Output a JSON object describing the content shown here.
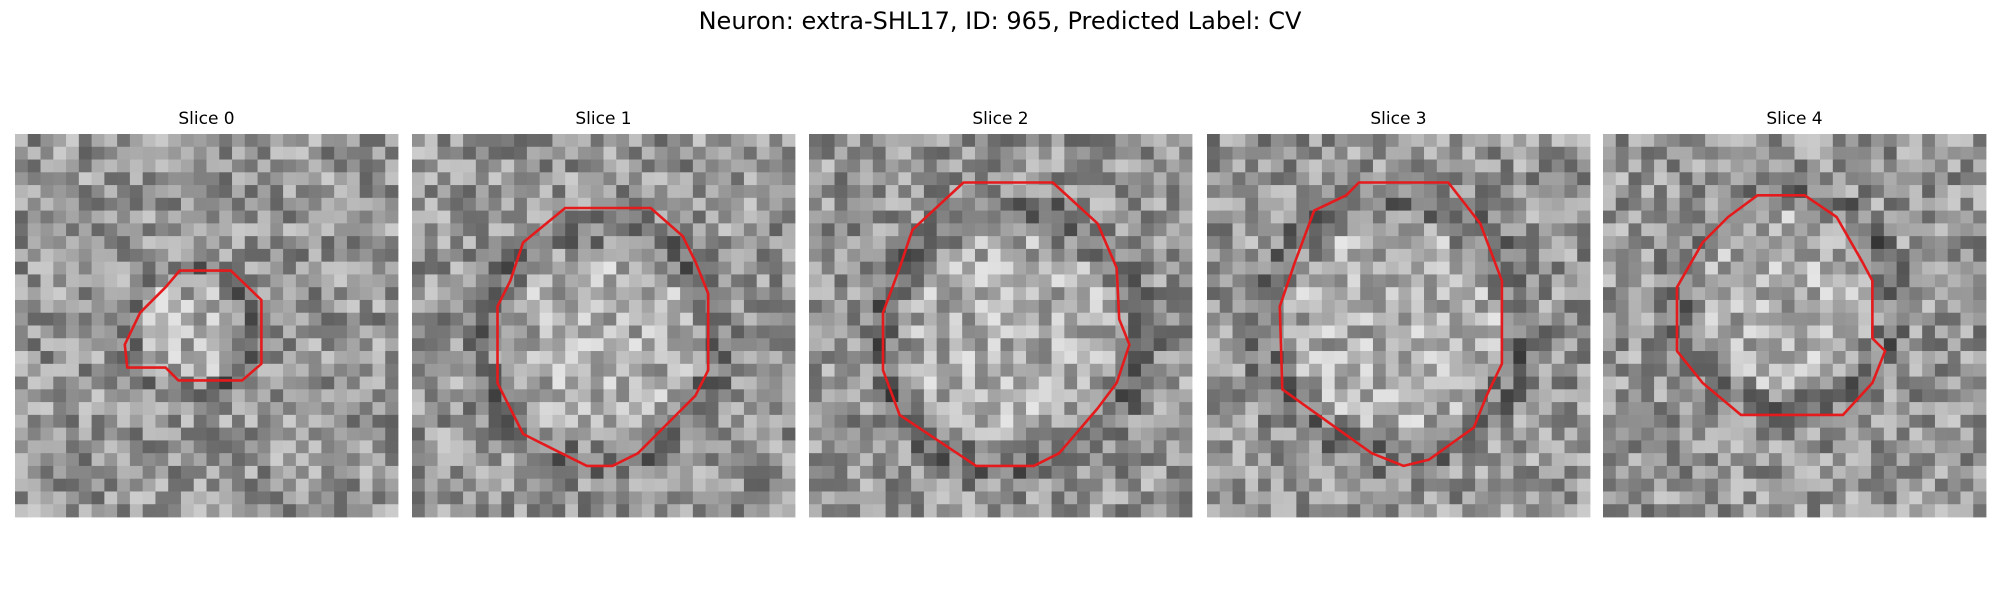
{
  "header": {
    "title": "Neuron: extra-SHL17, ID: 965, Predicted Label: CV"
  },
  "panels": [
    {
      "title": "Slice 0"
    },
    {
      "title": "Slice 1"
    },
    {
      "title": "Slice 2"
    },
    {
      "title": "Slice 3"
    },
    {
      "title": "Slice 4"
    }
  ]
}
